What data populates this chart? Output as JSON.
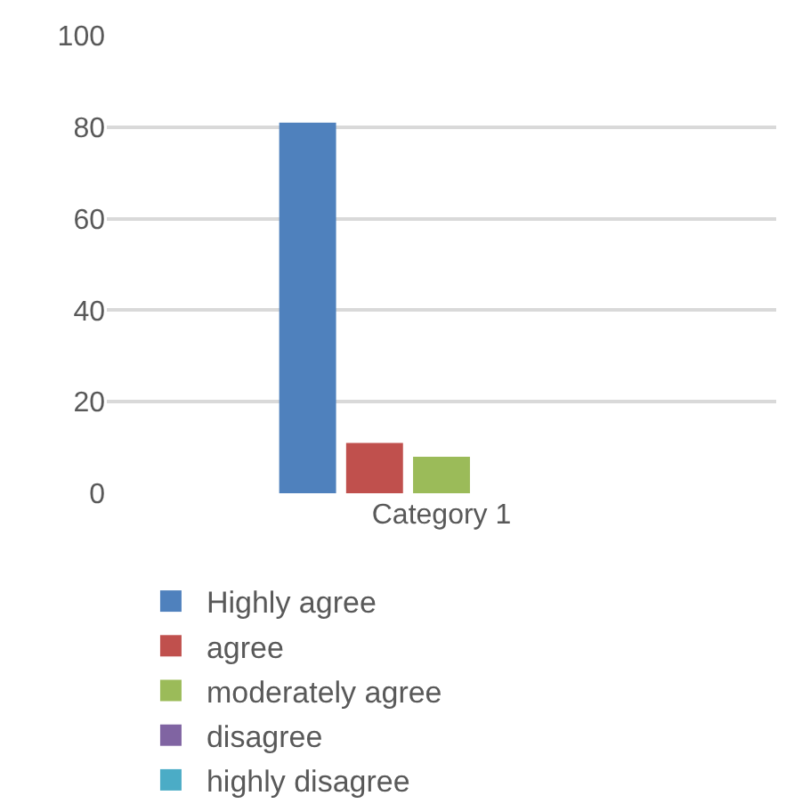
{
  "chart_data": {
    "type": "bar",
    "categories": [
      "Category 1"
    ],
    "series": [
      {
        "name": "Highly agree",
        "color": "#4f81bd",
        "values": [
          81
        ]
      },
      {
        "name": "agree",
        "color": "#c0504d",
        "values": [
          11
        ]
      },
      {
        "name": "moderately agree",
        "color": "#9bbb59",
        "values": [
          8
        ]
      },
      {
        "name": "disagree",
        "color": "#8064a2",
        "values": [
          0
        ]
      },
      {
        "name": "highly disagree",
        "color": "#4bacc6",
        "values": [
          0
        ]
      }
    ],
    "ylim": [
      0,
      100
    ],
    "yticks": [
      0,
      20,
      40,
      60,
      80,
      100
    ],
    "grid": "y",
    "legend": "bottom"
  }
}
